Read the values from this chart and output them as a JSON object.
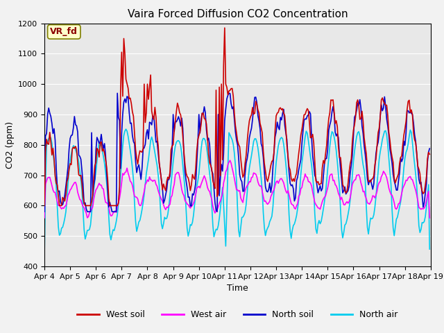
{
  "title": "Vaira Forced Diffusion CO2 Concentration",
  "xlabel": "Time",
  "ylabel": "CO2 (ppm)",
  "ylim": [
    400,
    1200
  ],
  "xlim": [
    0,
    360
  ],
  "yticks": [
    400,
    500,
    600,
    700,
    800,
    900,
    1000,
    1100,
    1200
  ],
  "xtick_positions": [
    0,
    24,
    48,
    72,
    96,
    120,
    144,
    168,
    192,
    216,
    240,
    264,
    288,
    312,
    336,
    360
  ],
  "xtick_labels": [
    "Apr 4",
    "Apr 5",
    "Apr 6",
    "Apr 7",
    "Apr 8",
    "Apr 9",
    "Apr 10",
    "Apr 11",
    "Apr 12",
    "Apr 13",
    "Apr 14",
    "Apr 15",
    "Apr 16",
    "Apr 17",
    "Apr 18",
    "Apr 19"
  ],
  "colors": {
    "west_soil": "#cc0000",
    "west_air": "#ff00ff",
    "north_soil": "#0000cc",
    "north_air": "#00ccee"
  },
  "legend_labels": [
    "West soil",
    "West air",
    "North soil",
    "North air"
  ],
  "annotation_text": "VR_fd",
  "background_color": "#e8e8e8",
  "grid_color": "#ffffff",
  "fig_background": "#f2f2f2",
  "linewidth": 1.2,
  "title_fontsize": 11,
  "axis_fontsize": 9,
  "tick_fontsize": 8
}
